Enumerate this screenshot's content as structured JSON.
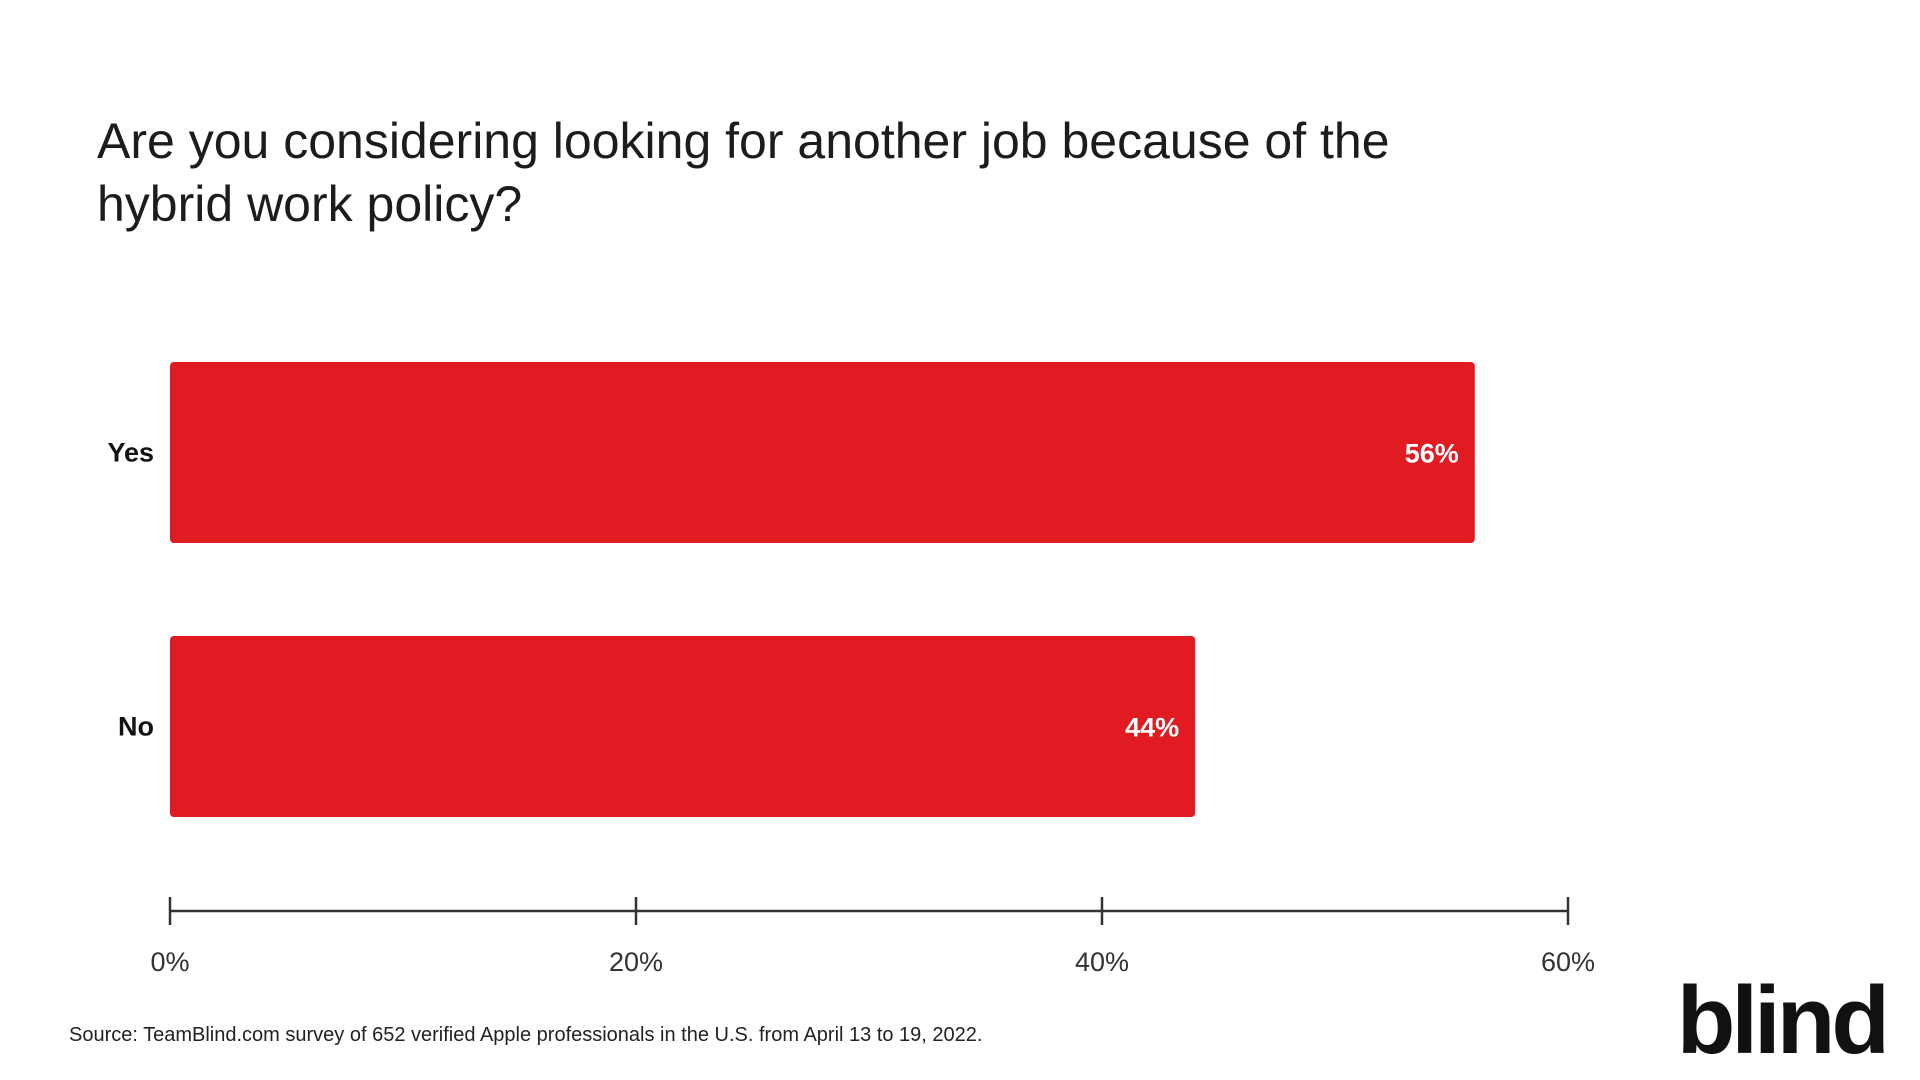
{
  "chart_data": {
    "type": "bar",
    "orientation": "horizontal",
    "title_lines": [
      "Are you considering looking for another job because of the",
      "hybrid work policy?"
    ],
    "categories": [
      "Yes",
      "No"
    ],
    "values": [
      56,
      44
    ],
    "value_labels": [
      "56%",
      "44%"
    ],
    "xlim": [
      0,
      60
    ],
    "ticks": [
      0,
      20,
      40,
      60
    ],
    "tick_labels": [
      "0%",
      "20%",
      "40%",
      "60%"
    ],
    "bar_color": "#E01B22",
    "grid": false,
    "legend": "none"
  },
  "source": "Source: TeamBlind.com survey of 652 verified Apple professionals in the U.S. from April 13 to 19, 2022.",
  "brand": {
    "logo_text": "blind",
    "color": "#111111"
  }
}
